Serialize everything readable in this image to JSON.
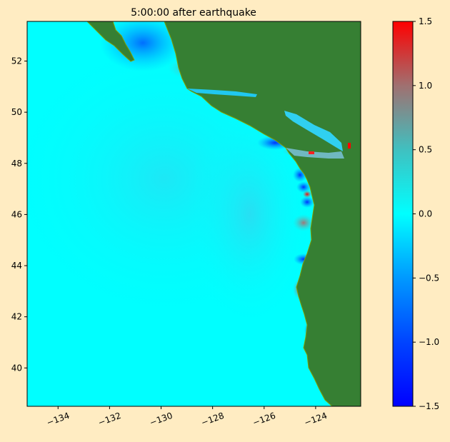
{
  "title": "5:00:00 after earthquake",
  "chart_data": {
    "type": "heatmap",
    "title": "5:00:00 after earthquake",
    "xlabel": "",
    "ylabel": "",
    "xlim": [
      -135.2,
      -122.25
    ],
    "ylim": [
      38.5,
      53.55
    ],
    "x_ticks": [
      -134,
      -132,
      -130,
      -128,
      -126,
      -124
    ],
    "x_tick_labels": [
      "−134",
      "−132",
      "−130",
      "−128",
      "−126",
      "−124"
    ],
    "y_ticks": [
      40,
      42,
      44,
      46,
      48,
      50,
      52
    ],
    "y_tick_labels": [
      "40",
      "42",
      "44",
      "46",
      "48",
      "50",
      "52"
    ],
    "colorbar": {
      "range": [
        -1.5,
        1.5
      ],
      "ticks": [
        -1.5,
        -1.0,
        -0.5,
        0.0,
        0.5,
        1.0,
        1.5
      ],
      "tick_labels": [
        "−1.5",
        "−1.0",
        "−0.5",
        "0.0",
        "0.5",
        "1.0",
        "1.5"
      ],
      "colors": [
        "#0000ff",
        "#0044ff",
        "#0099ff",
        "#00ffff",
        "#40c0c0",
        "#a07070",
        "#ff0000"
      ]
    },
    "grid": false,
    "legend": "none"
  },
  "colors": {
    "background": "#ffecc2",
    "land": "#367f33",
    "land_edge": "#7fa000",
    "water": "#00ffff"
  }
}
